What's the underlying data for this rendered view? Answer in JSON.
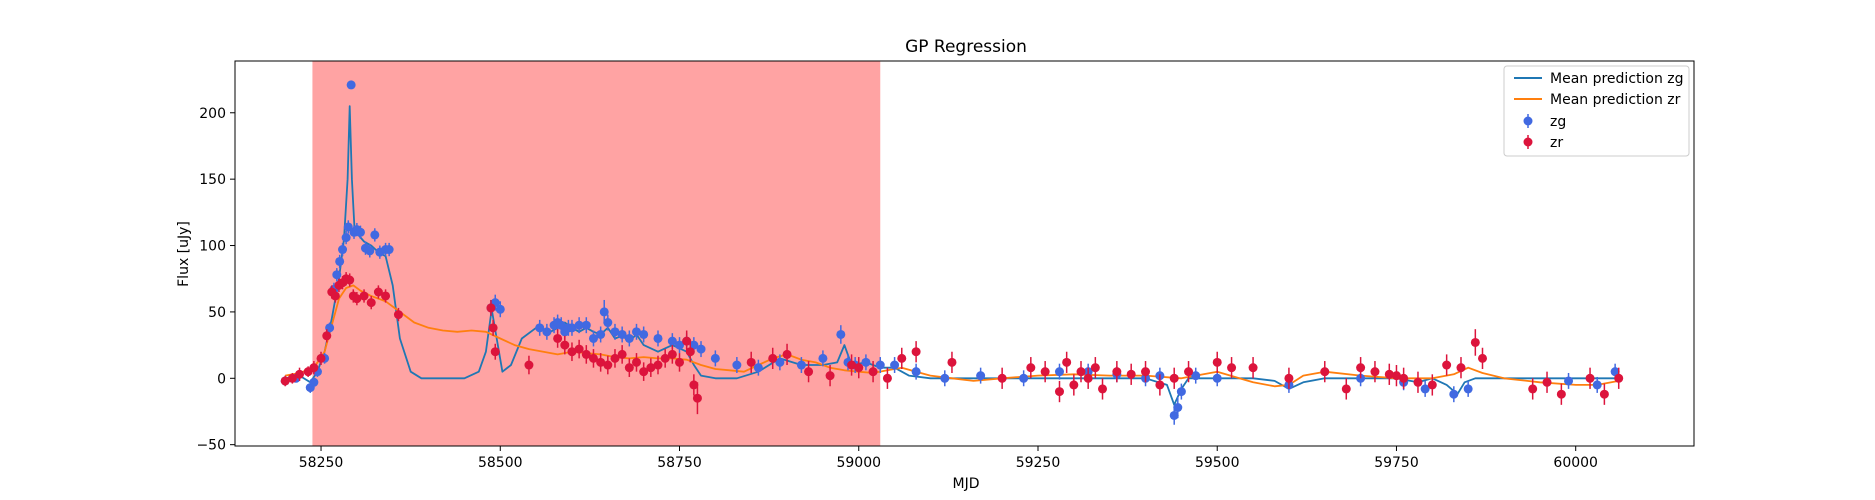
{
  "chart_data": {
    "type": "scatter",
    "title": "GP Regression",
    "xlabel": "MJD",
    "ylabel": "Flux [uJy]",
    "xlim": [
      58130,
      60165
    ],
    "ylim": [
      -51,
      239
    ],
    "xticks": [
      58250,
      58500,
      58750,
      59000,
      59250,
      59500,
      59750,
      60000
    ],
    "yticks": [
      -50,
      0,
      50,
      100,
      150,
      200
    ],
    "shaded_region": {
      "x0": 58238,
      "x1": 59030,
      "color": "#ffa3a3"
    },
    "legend_position": "top-right",
    "series": [
      {
        "name": "Mean prediction zg",
        "kind": "line",
        "color": "#1f77b4",
        "x": [
          58200,
          58220,
          58235,
          58245,
          58255,
          58265,
          58275,
          58282,
          58287,
          58290,
          58293,
          58297,
          58302,
          58310,
          58320,
          58330,
          58340,
          58350,
          58360,
          58375,
          58390,
          58410,
          58430,
          58450,
          58470,
          58480,
          58488,
          58495,
          58503,
          58515,
          58530,
          58550,
          58570,
          58580,
          58590,
          58600,
          58610,
          58620,
          58630,
          58640,
          58650,
          58660,
          58670,
          58680,
          58690,
          58700,
          58720,
          58740,
          58760,
          58770,
          58780,
          58800,
          58830,
          58860,
          58890,
          58920,
          58950,
          58970,
          58980,
          58990,
          59010,
          59030,
          59050,
          59070,
          59100,
          59150,
          59200,
          59250,
          59300,
          59350,
          59400,
          59430,
          59440,
          59450,
          59460,
          59480,
          59500,
          59550,
          59580,
          59600,
          59620,
          59650,
          59700,
          59750,
          59780,
          59800,
          59820,
          59835,
          59845,
          59860,
          59900,
          59950,
          60000,
          60030,
          60060
        ],
        "y": [
          0,
          2,
          -3,
          5,
          20,
          45,
          75,
          105,
          150,
          205,
          150,
          110,
          108,
          103,
          100,
          95,
          92,
          70,
          30,
          5,
          0,
          0,
          0,
          0,
          5,
          20,
          52,
          30,
          5,
          10,
          30,
          38,
          35,
          38,
          42,
          38,
          35,
          38,
          35,
          33,
          38,
          30,
          32,
          28,
          33,
          25,
          20,
          25,
          20,
          10,
          2,
          0,
          0,
          5,
          15,
          10,
          10,
          12,
          25,
          10,
          12,
          8,
          8,
          2,
          0,
          0,
          0,
          0,
          0,
          0,
          0,
          -5,
          -20,
          -8,
          0,
          0,
          0,
          0,
          -2,
          -8,
          -3,
          0,
          0,
          0,
          -3,
          0,
          -5,
          -12,
          -3,
          0,
          0,
          0,
          0,
          0,
          0
        ]
      },
      {
        "name": "Mean prediction zr",
        "kind": "line",
        "color": "#ff7f0e",
        "x": [
          58200,
          58220,
          58240,
          58255,
          58265,
          58275,
          58285,
          58295,
          58305,
          58320,
          58340,
          58360,
          58380,
          58400,
          58420,
          58440,
          58460,
          58480,
          58500,
          58520,
          58540,
          58560,
          58580,
          58600,
          58620,
          58640,
          58660,
          58680,
          58700,
          58720,
          58740,
          58760,
          58780,
          58800,
          58820,
          58840,
          58860,
          58880,
          58900,
          58920,
          58940,
          58960,
          58980,
          59000,
          59020,
          59040,
          59060,
          59080,
          59100,
          59130,
          59160,
          59200,
          59250,
          59300,
          59350,
          59400,
          59450,
          59500,
          59550,
          59580,
          59600,
          59620,
          59650,
          59700,
          59750,
          59800,
          59830,
          59850,
          59870,
          59900,
          59950,
          60000,
          60030,
          60060
        ],
        "y": [
          2,
          4,
          8,
          20,
          40,
          60,
          68,
          70,
          66,
          62,
          58,
          50,
          42,
          38,
          36,
          35,
          36,
          35,
          30,
          25,
          22,
          20,
          18,
          20,
          19,
          18,
          16,
          15,
          16,
          15,
          15,
          14,
          10,
          7,
          6,
          5,
          10,
          15,
          18,
          14,
          12,
          8,
          6,
          5,
          4,
          6,
          8,
          5,
          2,
          0,
          -2,
          0,
          2,
          3,
          2,
          2,
          0,
          5,
          -3,
          -6,
          -5,
          2,
          5,
          2,
          0,
          0,
          3,
          8,
          4,
          0,
          -3,
          -5,
          -5,
          -2
        ]
      },
      {
        "name": "zg",
        "kind": "errorbar",
        "color": "#4169e1",
        "x": [
          58200,
          58215,
          58235,
          58240,
          58245,
          58255,
          58262,
          58268,
          58272,
          58276,
          58280,
          58285,
          58288,
          58292,
          58296,
          58300,
          58305,
          58312,
          58318,
          58325,
          58332,
          58340,
          58345,
          58487,
          58493,
          58500,
          58555,
          58565,
          58575,
          58580,
          58585,
          58590,
          58595,
          58600,
          58610,
          58620,
          58630,
          58640,
          58645,
          58650,
          58660,
          58670,
          58680,
          58690,
          58700,
          58720,
          58740,
          58750,
          58760,
          58770,
          58780,
          58800,
          58830,
          58860,
          58890,
          58920,
          58950,
          58975,
          58985,
          58995,
          59010,
          59030,
          59050,
          59080,
          59120,
          59170,
          59230,
          59280,
          59320,
          59360,
          59400,
          59420,
          59440,
          59445,
          59450,
          59470,
          59500,
          59600,
          59700,
          59760,
          59790,
          59830,
          59850,
          59990,
          60030,
          60055
        ],
        "y": [
          -2,
          0,
          -7,
          -3,
          5,
          15,
          38,
          67,
          78,
          88,
          97,
          106,
          114,
          221,
          110,
          112,
          110,
          98,
          96,
          108,
          95,
          97,
          97,
          53,
          57,
          52,
          38,
          35,
          40,
          42,
          40,
          35,
          38,
          38,
          40,
          40,
          30,
          33,
          50,
          42,
          35,
          33,
          30,
          35,
          33,
          30,
          28,
          25,
          28,
          25,
          22,
          15,
          10,
          8,
          12,
          10,
          15,
          33,
          12,
          10,
          12,
          10,
          10,
          5,
          0,
          2,
          0,
          5,
          5,
          3,
          0,
          2,
          -28,
          -22,
          -10,
          2,
          0,
          -5,
          0,
          -3,
          -8,
          -12,
          -8,
          -2,
          -5,
          5
        ],
        "yerr": [
          3,
          3,
          4,
          3,
          4,
          4,
          4,
          5,
          5,
          5,
          5,
          5,
          5,
          3,
          5,
          5,
          5,
          5,
          5,
          5,
          5,
          5,
          5,
          6,
          6,
          6,
          6,
          6,
          6,
          6,
          6,
          6,
          6,
          6,
          6,
          6,
          6,
          6,
          9,
          6,
          6,
          6,
          6,
          6,
          6,
          6,
          6,
          6,
          6,
          6,
          6,
          6,
          6,
          6,
          6,
          6,
          6,
          7,
          6,
          6,
          6,
          6,
          6,
          6,
          6,
          6,
          6,
          6,
          6,
          6,
          6,
          6,
          7,
          8,
          6,
          6,
          6,
          6,
          6,
          6,
          6,
          6,
          6,
          6,
          6,
          6
        ]
      },
      {
        "name": "zr",
        "kind": "errorbar",
        "color": "#dc143c",
        "x": [
          58200,
          58210,
          58220,
          58232,
          58240,
          58250,
          58258,
          58265,
          58270,
          58275,
          58280,
          58285,
          58290,
          58295,
          58300,
          58310,
          58320,
          58330,
          58340,
          58358,
          58487,
          58490,
          58493,
          58540,
          58580,
          58590,
          58600,
          58610,
          58620,
          58630,
          58640,
          58650,
          58660,
          58670,
          58680,
          58690,
          58700,
          58710,
          58720,
          58730,
          58740,
          58750,
          58760,
          58765,
          58770,
          58775,
          58850,
          58880,
          58900,
          58930,
          58960,
          58990,
          59000,
          59020,
          59040,
          59060,
          59080,
          59130,
          59200,
          59240,
          59260,
          59280,
          59290,
          59300,
          59310,
          59320,
          59330,
          59340,
          59360,
          59380,
          59400,
          59420,
          59440,
          59460,
          59500,
          59520,
          59550,
          59600,
          59650,
          59680,
          59700,
          59720,
          59740,
          59750,
          59760,
          59780,
          59800,
          59820,
          59840,
          59860,
          59870,
          59940,
          59960,
          59980,
          60020,
          60040,
          60060
        ],
        "y": [
          -2,
          0,
          3,
          5,
          8,
          15,
          32,
          65,
          62,
          70,
          72,
          75,
          74,
          62,
          60,
          62,
          57,
          65,
          62,
          48,
          53,
          38,
          20,
          10,
          30,
          25,
          20,
          22,
          18,
          15,
          12,
          10,
          15,
          18,
          8,
          12,
          5,
          8,
          10,
          15,
          18,
          12,
          28,
          20,
          -5,
          -15,
          12,
          15,
          18,
          5,
          2,
          10,
          8,
          5,
          0,
          15,
          20,
          12,
          0,
          8,
          5,
          -10,
          12,
          -5,
          5,
          0,
          8,
          -8,
          5,
          3,
          5,
          -5,
          0,
          5,
          12,
          8,
          8,
          0,
          5,
          -8,
          8,
          5,
          3,
          2,
          0,
          -3,
          -5,
          10,
          8,
          27,
          15,
          -8,
          -3,
          -12,
          0,
          -12,
          0
        ],
        "yerr": [
          4,
          4,
          5,
          4,
          5,
          5,
          5,
          5,
          5,
          5,
          5,
          5,
          5,
          5,
          5,
          5,
          5,
          5,
          5,
          5,
          6,
          6,
          6,
          7,
          7,
          7,
          7,
          7,
          7,
          7,
          7,
          7,
          7,
          7,
          7,
          7,
          7,
          7,
          7,
          7,
          7,
          7,
          8,
          8,
          8,
          12,
          8,
          8,
          8,
          8,
          8,
          8,
          8,
          8,
          8,
          8,
          8,
          8,
          8,
          8,
          8,
          8,
          8,
          8,
          8,
          8,
          8,
          8,
          8,
          8,
          8,
          8,
          8,
          8,
          8,
          8,
          8,
          8,
          8,
          8,
          8,
          8,
          8,
          8,
          8,
          8,
          8,
          8,
          8,
          10,
          8,
          8,
          8,
          8,
          8,
          8,
          8
        ]
      }
    ]
  }
}
